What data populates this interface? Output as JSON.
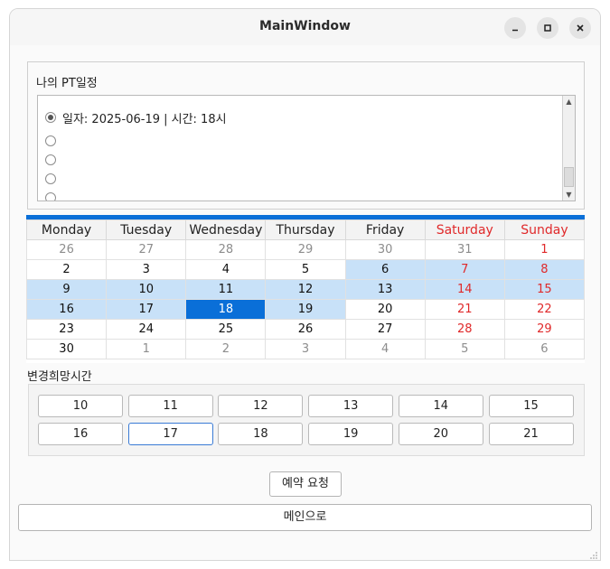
{
  "window": {
    "title": "MainWindow",
    "controls": [
      "minimize-icon",
      "maximize-icon",
      "close-icon"
    ]
  },
  "schedule": {
    "group_label": "나의 PT일정",
    "items": [
      {
        "label": "일자: 2025-06-19 | 시간: 18시",
        "checked": true
      },
      {
        "label": "",
        "checked": false
      },
      {
        "label": "",
        "checked": false
      },
      {
        "label": "",
        "checked": false
      },
      {
        "label": "",
        "checked": false
      }
    ]
  },
  "calendar": {
    "headers": [
      "Monday",
      "Tuesday",
      "Wednesday",
      "Thursday",
      "Friday",
      "Saturday",
      "Sunday"
    ],
    "weeks": [
      [
        {
          "d": "26",
          "o": 1
        },
        {
          "d": "27",
          "o": 1
        },
        {
          "d": "28",
          "o": 1
        },
        {
          "d": "29",
          "o": 1
        },
        {
          "d": "30",
          "o": 1
        },
        {
          "d": "31",
          "o": 1
        },
        {
          "d": "1"
        }
      ],
      [
        {
          "d": "2"
        },
        {
          "d": "3"
        },
        {
          "d": "4"
        },
        {
          "d": "5"
        },
        {
          "d": "6",
          "h": 1
        },
        {
          "d": "7",
          "h": 1
        },
        {
          "d": "8",
          "h": 1
        }
      ],
      [
        {
          "d": "9",
          "h": 1
        },
        {
          "d": "10",
          "h": 1
        },
        {
          "d": "11",
          "h": 1
        },
        {
          "d": "12",
          "h": 1
        },
        {
          "d": "13",
          "h": 1
        },
        {
          "d": "14",
          "h": 1
        },
        {
          "d": "15",
          "h": 1
        }
      ],
      [
        {
          "d": "16",
          "h": 1
        },
        {
          "d": "17",
          "h": 1
        },
        {
          "d": "18",
          "s": 1
        },
        {
          "d": "19",
          "h": 1
        },
        {
          "d": "20"
        },
        {
          "d": "21"
        },
        {
          "d": "22"
        }
      ],
      [
        {
          "d": "23"
        },
        {
          "d": "24"
        },
        {
          "d": "25"
        },
        {
          "d": "26"
        },
        {
          "d": "27"
        },
        {
          "d": "28"
        },
        {
          "d": "29"
        }
      ],
      [
        {
          "d": "30"
        },
        {
          "d": "1",
          "o": 1
        },
        {
          "d": "2",
          "o": 1
        },
        {
          "d": "3",
          "o": 1
        },
        {
          "d": "4",
          "o": 1
        },
        {
          "d": "5",
          "o": 1
        },
        {
          "d": "6",
          "o": 1
        }
      ]
    ],
    "colors": {
      "accent": "#0a6fd8",
      "highlight": "#c8e1f8",
      "weekend": "#e0292a"
    }
  },
  "time_section": {
    "label": "변경희망시간",
    "hours": [
      "10",
      "11",
      "12",
      "13",
      "14",
      "15",
      "16",
      "17",
      "18",
      "19",
      "20",
      "21"
    ],
    "focused": "17"
  },
  "actions": {
    "reserve_label": "예약 요청",
    "main_label": "메인으로"
  }
}
